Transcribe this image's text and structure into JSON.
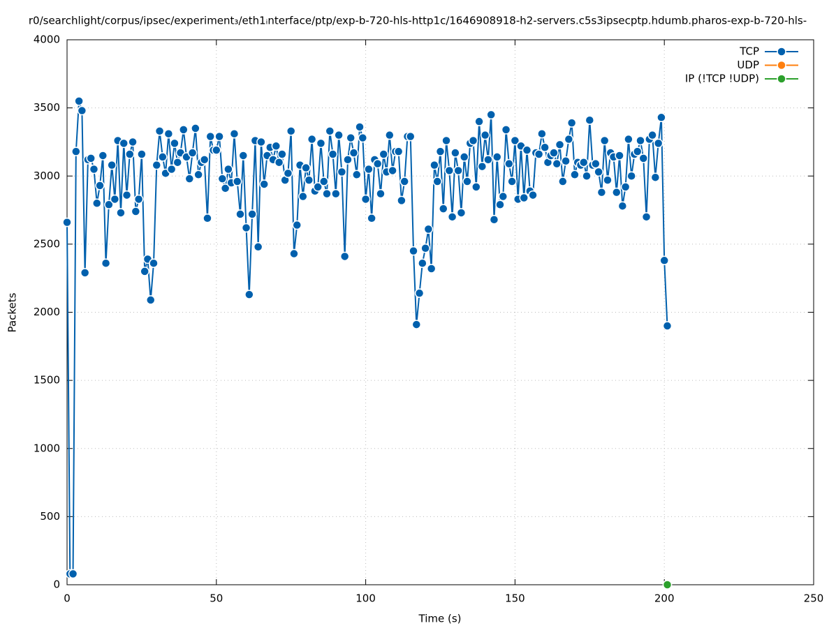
{
  "chart_data": {
    "type": "line",
    "title": "r0/searchlight/corpus/ipsec/experiment₃/eth1ᵢnterface/ptp/exp-b-720-hls-http1c/1646908918-h2-servers.c5s3ipsecptp.hdumb.pharos-exp-b-720-hls-",
    "xlabel": "Time (s)",
    "ylabel": "Packets",
    "xlim": [
      0,
      250
    ],
    "xticks": [
      0,
      50,
      100,
      150,
      200,
      250
    ],
    "ylim": [
      0,
      4000
    ],
    "yticks": [
      0,
      500,
      1000,
      1500,
      2000,
      2500,
      3000,
      3500,
      4000
    ],
    "grid": true,
    "legend": "top-right",
    "series": [
      {
        "name": "TCP",
        "color": "#0060ad",
        "x": [
          0,
          1,
          2,
          3,
          4,
          5,
          6,
          7,
          8,
          9,
          10,
          11,
          12,
          13,
          14,
          15,
          16,
          17,
          18,
          19,
          20,
          21,
          22,
          23,
          24,
          25,
          26,
          27,
          28,
          29,
          30,
          31,
          32,
          33,
          34,
          35,
          36,
          37,
          38,
          39,
          40,
          41,
          42,
          43,
          44,
          45,
          46,
          47,
          48,
          49,
          50,
          51,
          52,
          53,
          54,
          55,
          56,
          57,
          58,
          59,
          60,
          61,
          62,
          63,
          64,
          65,
          66,
          67,
          68,
          69,
          70,
          71,
          72,
          73,
          74,
          75,
          76,
          77,
          78,
          79,
          80,
          81,
          82,
          83,
          84,
          85,
          86,
          87,
          88,
          89,
          90,
          91,
          92,
          93,
          94,
          95,
          96,
          97,
          98,
          99,
          100,
          101,
          102,
          103,
          104,
          105,
          106,
          107,
          108,
          109,
          110,
          111,
          112,
          113,
          114,
          115,
          116,
          117,
          118,
          119,
          120,
          121,
          122,
          123,
          124,
          125,
          126,
          127,
          128,
          129,
          130,
          131,
          132,
          133,
          134,
          135,
          136,
          137,
          138,
          139,
          140,
          141,
          142,
          143,
          144,
          145,
          146,
          147,
          148,
          149,
          150,
          151,
          152,
          153,
          154,
          155,
          156,
          157,
          158,
          159,
          160,
          161,
          162,
          163,
          164,
          165,
          166,
          167,
          168,
          169,
          170,
          171,
          172,
          173,
          174,
          175,
          176,
          177,
          178,
          179,
          180,
          181,
          182,
          183,
          184,
          185,
          186,
          187,
          188,
          189,
          190,
          191,
          192,
          193,
          194,
          195,
          196,
          197,
          198,
          199,
          200,
          201
        ],
        "values": [
          2660,
          80,
          80,
          3180,
          3550,
          3480,
          2290,
          3120,
          3130,
          3050,
          2800,
          2930,
          3150,
          2360,
          2790,
          3080,
          2830,
          3260,
          2730,
          3240,
          2860,
          3160,
          3250,
          2740,
          2830,
          3160,
          2300,
          2390,
          2090,
          2360,
          3080,
          3330,
          3140,
          3020,
          3310,
          3050,
          3240,
          3100,
          3170,
          3340,
          3140,
          2980,
          3170,
          3350,
          3010,
          3100,
          3120,
          2690,
          3290,
          3190,
          3190,
          3290,
          2980,
          2910,
          3050,
          2950,
          3310,
          2960,
          2720,
          3150,
          2620,
          2130,
          2720,
          3260,
          2480,
          3250,
          2940,
          3150,
          3210,
          3120,
          3220,
          3100,
          3160,
          2970,
          3020,
          3330,
          2430,
          2640,
          3080,
          2850,
          3060,
          2970,
          3270,
          2890,
          2920,
          3240,
          2960,
          2870,
          3330,
          3160,
          2870,
          3300,
          3030,
          2410,
          3120,
          3280,
          3170,
          3010,
          3360,
          3280,
          2830,
          3050,
          2690,
          3120,
          3090,
          2870,
          3160,
          3030,
          3300,
          3040,
          3180,
          3180,
          2820,
          2960,
          3290,
          3290,
          2450,
          1910,
          2140,
          2360,
          2470,
          2610,
          2320,
          3080,
          2960,
          3180,
          2760,
          3260,
          3040,
          2700,
          3170,
          3040,
          2730,
          3140,
          2960,
          3240,
          3260,
          2920,
          3400,
          3070,
          3300,
          3120,
          3450,
          2680,
          3140,
          2790,
          2850,
          3340,
          3090,
          2960,
          3260,
          2830,
          3220,
          2840,
          3190,
          2890,
          2860,
          3170,
          3160,
          3310,
          3210,
          3100,
          3150,
          3170,
          3090,
          3230,
          2960,
          3110,
          3270,
          3390,
          3010,
          3100,
          3080,
          3100,
          3000,
          3410,
          3080,
          3090,
          3030,
          2880,
          3260,
          2970,
          3170,
          3140,
          2880,
          3150,
          2780,
          2920,
          3270,
          3000,
          3160,
          3180,
          3260,
          3130,
          2700,
          3270,
          3300,
          2990,
          3240,
          3430,
          2380,
          1900
        ]
      },
      {
        "name": "UDP",
        "color": "#ff7f0e",
        "x": [
          201
        ],
        "values": [
          0
        ]
      },
      {
        "name": "IP (!TCP  !UDP)",
        "color": "#2ca02c",
        "x": [
          201
        ],
        "values": [
          0
        ]
      }
    ]
  }
}
